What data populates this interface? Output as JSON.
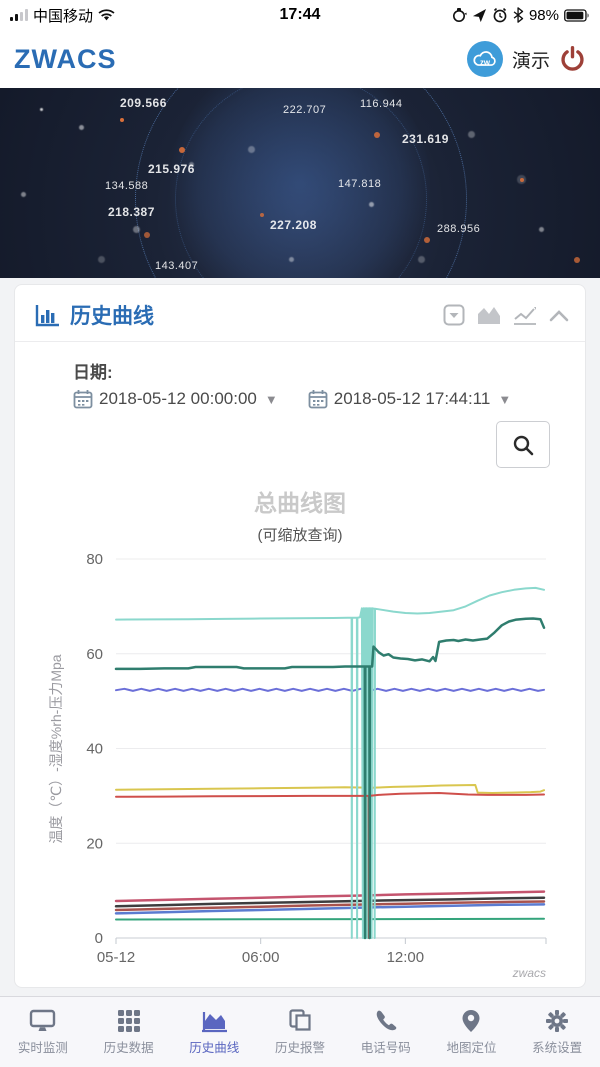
{
  "status_bar": {
    "carrier": "中国移动",
    "time": "17:44",
    "battery_percent": "98%"
  },
  "app_header": {
    "logo": "ZWACS",
    "cloud_badge_text": "zw",
    "demo_label": "演示"
  },
  "hero": {
    "numbers": [
      "209.566",
      "222.707",
      "116.944",
      "231.619",
      "215.976",
      "134.588",
      "147.818",
      "218.387",
      "227.208",
      "288.956",
      "143.407"
    ]
  },
  "panel": {
    "title": "历史曲线"
  },
  "filters": {
    "date_label": "日期:",
    "start_datetime": "2018-05-12 00:00:00",
    "end_datetime": "2018-05-12 17:44:11"
  },
  "chart_data": {
    "type": "line",
    "title": "总曲线图",
    "subtitle": "(可缩放查询)",
    "ylabel": "温度（℃）-湿度%rh-压力Mpa",
    "watermark": "zwacs",
    "ylim": [
      0,
      80
    ],
    "yticks": [
      0,
      20,
      40,
      60,
      80
    ],
    "xlim_hours": [
      0,
      17.75
    ],
    "xticks": [
      {
        "hour": 0,
        "label": "05-12"
      },
      {
        "hour": 6,
        "label": "06:00"
      },
      {
        "hour": 12,
        "label": "12:00"
      }
    ],
    "grid": true,
    "legend": "none",
    "series": [
      {
        "name": "green",
        "color": "#34a47c",
        "width": 2,
        "points": [
          [
            0,
            3.9
          ],
          [
            17.75,
            4.05
          ]
        ]
      },
      {
        "name": "steel-blue",
        "color": "#5b7bd0",
        "width": 2.5,
        "points": [
          [
            0,
            5.2
          ],
          [
            2,
            5.45
          ],
          [
            4,
            5.7
          ],
          [
            6,
            5.9
          ],
          [
            8,
            6.15
          ],
          [
            10,
            6.4
          ],
          [
            12,
            6.6
          ],
          [
            14,
            6.8
          ],
          [
            16,
            7.0
          ],
          [
            17.75,
            7.1
          ]
        ]
      },
      {
        "name": "brown",
        "color": "#a8534e",
        "width": 2.5,
        "points": [
          [
            0,
            5.9
          ],
          [
            2,
            6.15
          ],
          [
            4,
            6.4
          ],
          [
            6,
            6.6
          ],
          [
            8,
            6.85
          ],
          [
            10,
            7.05
          ],
          [
            12,
            7.25
          ],
          [
            14,
            7.45
          ],
          [
            16,
            7.6
          ],
          [
            17.75,
            7.7
          ]
        ]
      },
      {
        "name": "black",
        "color": "#3d3d3f",
        "width": 2.5,
        "points": [
          [
            0,
            6.7
          ],
          [
            2,
            6.95
          ],
          [
            4,
            7.2
          ],
          [
            6,
            7.4
          ],
          [
            8,
            7.6
          ],
          [
            10,
            7.8
          ],
          [
            12,
            8.0
          ],
          [
            14,
            8.15
          ],
          [
            16,
            8.35
          ],
          [
            17.75,
            8.5
          ]
        ]
      },
      {
        "name": "crimson",
        "color": "#c4546e",
        "width": 2.5,
        "points": [
          [
            0,
            7.8
          ],
          [
            2,
            8.05
          ],
          [
            4,
            8.3
          ],
          [
            6,
            8.5
          ],
          [
            8,
            8.75
          ],
          [
            10,
            8.95
          ],
          [
            12,
            9.2
          ],
          [
            14,
            9.4
          ],
          [
            16,
            9.6
          ],
          [
            17.75,
            9.8
          ]
        ]
      },
      {
        "name": "yellow",
        "color": "#d9c64f",
        "width": 2,
        "points": [
          [
            0,
            31.3
          ],
          [
            2,
            31.4
          ],
          [
            4,
            31.5
          ],
          [
            6,
            31.6
          ],
          [
            8,
            31.7
          ],
          [
            9.5,
            31.8
          ],
          [
            10.6,
            31.7
          ],
          [
            11.5,
            31.9
          ],
          [
            12.5,
            32.0
          ],
          [
            13.5,
            32.2
          ],
          [
            14.9,
            32.3
          ],
          [
            15.0,
            30.7
          ],
          [
            15.6,
            30.6
          ],
          [
            16.4,
            30.7
          ],
          [
            17.2,
            30.8
          ],
          [
            17.6,
            30.9
          ],
          [
            17.75,
            31.2
          ]
        ]
      },
      {
        "name": "blue",
        "color": "#6b6fd8",
        "width": 2,
        "points": [
          [
            0,
            52.3
          ],
          [
            0.35,
            52.6
          ],
          [
            0.7,
            52.15
          ],
          [
            1.05,
            52.6
          ],
          [
            1.4,
            52.15
          ],
          [
            1.75,
            52.6
          ],
          [
            2.1,
            52.15
          ],
          [
            2.45,
            52.6
          ],
          [
            2.8,
            52.15
          ],
          [
            3.15,
            52.6
          ],
          [
            3.5,
            52.15
          ],
          [
            3.85,
            52.6
          ],
          [
            4.2,
            52.15
          ],
          [
            4.55,
            52.6
          ],
          [
            4.9,
            52.15
          ],
          [
            5.25,
            52.6
          ],
          [
            5.6,
            52.15
          ],
          [
            5.95,
            52.6
          ],
          [
            6.3,
            52.15
          ],
          [
            6.65,
            52.6
          ],
          [
            7,
            52.15
          ],
          [
            7.35,
            52.6
          ],
          [
            7.7,
            52.15
          ],
          [
            8.05,
            52.6
          ],
          [
            8.4,
            52.15
          ],
          [
            8.75,
            52.6
          ],
          [
            9.1,
            52.15
          ],
          [
            9.45,
            52.6
          ],
          [
            9.8,
            52.15
          ],
          [
            10.15,
            52.6
          ],
          [
            10.5,
            52.15
          ],
          [
            10.85,
            52.6
          ],
          [
            11.2,
            52.15
          ],
          [
            11.55,
            52.6
          ],
          [
            11.9,
            52.15
          ],
          [
            12.25,
            52.6
          ],
          [
            12.6,
            52.15
          ],
          [
            12.95,
            52.6
          ],
          [
            13.3,
            52.15
          ],
          [
            13.65,
            52.6
          ],
          [
            14,
            52.15
          ],
          [
            14.35,
            52.6
          ],
          [
            14.7,
            52.15
          ],
          [
            15.05,
            52.6
          ],
          [
            15.4,
            52.15
          ],
          [
            15.75,
            52.6
          ],
          [
            16.1,
            52.15
          ],
          [
            16.45,
            52.6
          ],
          [
            16.8,
            52.15
          ],
          [
            17.15,
            52.6
          ],
          [
            17.5,
            52.15
          ],
          [
            17.75,
            52.4
          ]
        ]
      },
      {
        "name": "aqua",
        "color": "#8bd8cd",
        "width": 2,
        "points": [
          [
            0,
            67.2
          ],
          [
            1.5,
            67.25
          ],
          [
            3,
            67.3
          ],
          [
            4.5,
            67.35
          ],
          [
            6,
            67.45
          ],
          [
            7.5,
            67.5
          ],
          [
            9,
            67.55
          ],
          [
            9.6,
            67.6
          ],
          [
            9.77,
            67.6
          ],
          [
            9.78,
            0
          ],
          [
            9.79,
            67.6
          ],
          [
            9.99,
            67.6
          ],
          [
            10.0,
            0
          ],
          [
            10.01,
            67.6
          ],
          [
            10.12,
            67.7
          ],
          [
            10.2,
            69.6
          ],
          [
            10.24,
            0
          ],
          [
            10.27,
            69.6
          ],
          [
            10.3,
            0
          ],
          [
            10.33,
            69.6
          ],
          [
            10.36,
            0
          ],
          [
            10.39,
            69.6
          ],
          [
            10.42,
            0
          ],
          [
            10.45,
            69.6
          ],
          [
            10.48,
            0
          ],
          [
            10.51,
            69.6
          ],
          [
            10.54,
            0
          ],
          [
            10.57,
            69.6
          ],
          [
            10.6,
            0
          ],
          [
            10.63,
            69.6
          ],
          [
            10.72,
            69.5
          ],
          [
            10.73,
            0
          ],
          [
            10.74,
            69.5
          ],
          [
            11.0,
            69.3
          ],
          [
            11.5,
            68.9
          ],
          [
            12.0,
            68.6
          ],
          [
            12.5,
            68.5
          ],
          [
            13.0,
            68.6
          ],
          [
            13.5,
            68.9
          ],
          [
            14.0,
            69.2
          ],
          [
            14.5,
            70.0
          ],
          [
            15.0,
            71.2
          ],
          [
            15.5,
            72.3
          ],
          [
            16.0,
            73.0
          ],
          [
            16.5,
            73.5
          ],
          [
            17.0,
            73.8
          ],
          [
            17.4,
            73.9
          ],
          [
            17.75,
            73.5
          ]
        ]
      },
      {
        "name": "red",
        "color": "#cf4f4b",
        "width": 2,
        "points": [
          [
            0,
            29.8
          ],
          [
            2,
            29.85
          ],
          [
            4,
            29.9
          ],
          [
            6,
            29.95
          ],
          [
            8,
            30.0
          ],
          [
            9.6,
            30.0
          ],
          [
            10.48,
            30.0
          ],
          [
            10.49,
            0
          ],
          [
            10.5,
            30.0
          ],
          [
            10.9,
            30.2
          ],
          [
            11.8,
            30.45
          ],
          [
            12.8,
            30.55
          ],
          [
            13.4,
            30.6
          ],
          [
            14.0,
            30.45
          ],
          [
            14.6,
            30.3
          ],
          [
            15.4,
            30.2
          ],
          [
            16.2,
            30.2
          ],
          [
            17.0,
            30.2
          ],
          [
            17.75,
            30.3
          ]
        ]
      },
      {
        "name": "teal",
        "color": "#2f7d6e",
        "width": 2.5,
        "points": [
          [
            0,
            56.8
          ],
          [
            1,
            56.8
          ],
          [
            2,
            56.9
          ],
          [
            3,
            56.9
          ],
          [
            3.3,
            57.2
          ],
          [
            5,
            57.2
          ],
          [
            5.3,
            56.9
          ],
          [
            7,
            56.9
          ],
          [
            7.3,
            57.2
          ],
          [
            9,
            57.2
          ],
          [
            9.5,
            57.3
          ],
          [
            10.32,
            57.3
          ],
          [
            10.33,
            0
          ],
          [
            10.34,
            57.3
          ],
          [
            10.51,
            57.3
          ],
          [
            10.52,
            0
          ],
          [
            10.53,
            57.3
          ],
          [
            10.62,
            57.3
          ],
          [
            10.68,
            61.5
          ],
          [
            10.9,
            60.3
          ],
          [
            11.1,
            59.6
          ],
          [
            11.3,
            59.9
          ],
          [
            11.5,
            59.2
          ],
          [
            11.8,
            59.0
          ],
          [
            12.1,
            58.9
          ],
          [
            12.4,
            58.6
          ],
          [
            12.7,
            58.8
          ],
          [
            13.0,
            58.4
          ],
          [
            13.15,
            59.3
          ],
          [
            13.25,
            58.5
          ],
          [
            13.4,
            62.5
          ],
          [
            13.7,
            62.8
          ],
          [
            14.0,
            62.9
          ],
          [
            14.2,
            62.7
          ],
          [
            14.5,
            63.0
          ],
          [
            14.8,
            62.8
          ],
          [
            15.1,
            63.0
          ],
          [
            15.4,
            63.2
          ],
          [
            15.7,
            64.5
          ],
          [
            16.0,
            66.0
          ],
          [
            16.3,
            66.8
          ],
          [
            16.6,
            67.2
          ],
          [
            17.0,
            67.4
          ],
          [
            17.3,
            67.45
          ],
          [
            17.6,
            67.3
          ],
          [
            17.75,
            65.5
          ]
        ]
      }
    ]
  },
  "tab_bar": {
    "items": [
      {
        "label": "实时监测",
        "active": false
      },
      {
        "label": "历史数据",
        "active": false
      },
      {
        "label": "历史曲线",
        "active": true
      },
      {
        "label": "历史报警",
        "active": false
      },
      {
        "label": "电话号码",
        "active": false
      },
      {
        "label": "地图定位",
        "active": false
      },
      {
        "label": "系统设置",
        "active": false
      }
    ]
  }
}
